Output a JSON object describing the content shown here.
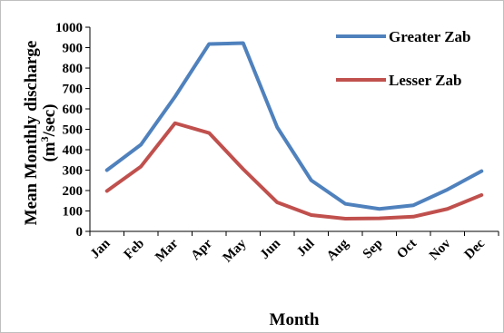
{
  "chart_data": {
    "type": "line",
    "title": "",
    "xlabel": "Month",
    "ylabel": "Mean Monthly discharge",
    "ylabel_unit_prefix": "(m",
    "ylabel_unit_sup": "3",
    "ylabel_unit_suffix": "/sec)",
    "ylim": [
      0,
      1000
    ],
    "yticks": [
      0,
      100,
      200,
      300,
      400,
      500,
      600,
      700,
      800,
      900,
      1000
    ],
    "grid": false,
    "legend_position": "top-right",
    "categories": [
      "Jan",
      "Feb",
      "Mar",
      "Apr",
      "May",
      "Jun",
      "Jul",
      "Aug",
      "Sep",
      "Oct",
      "Nov",
      "Dec"
    ],
    "series": [
      {
        "name": "Greater Zab",
        "color": "#4F81BD",
        "values": [
          300,
          425,
          660,
          918,
          922,
          510,
          250,
          135,
          110,
          128,
          205,
          295
        ]
      },
      {
        "name": "Lesser Zab",
        "color": "#C0504D",
        "values": [
          198,
          318,
          530,
          482,
          305,
          142,
          80,
          62,
          64,
          72,
          110,
          178
        ]
      }
    ]
  }
}
